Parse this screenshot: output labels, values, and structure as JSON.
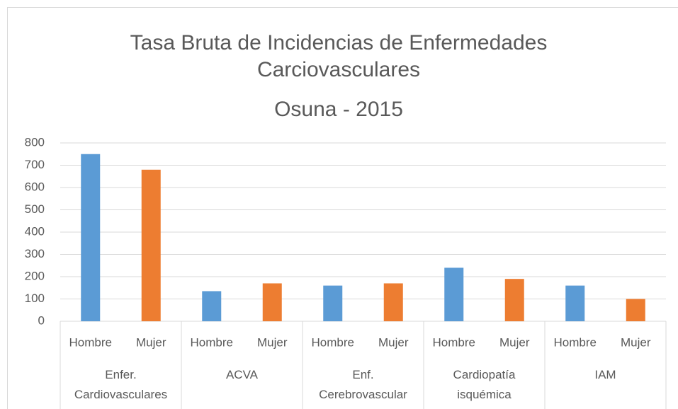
{
  "chart_data": {
    "type": "bar",
    "title": "Tasa Bruta de Incidencias de Enfermedades Carciovasculares",
    "subtitle": "Osuna - 2015",
    "categories": [
      "Enfer. Cardiovasculares",
      "ACVA",
      "Enf. Cerebrovascular",
      "Cardiopatía isquémica",
      "IAM"
    ],
    "series": [
      {
        "name": "Hombre",
        "color": "#5b9bd5",
        "values": [
          750,
          135,
          160,
          240,
          160
        ]
      },
      {
        "name": "Mujer",
        "color": "#ed7d31",
        "values": [
          680,
          170,
          170,
          190,
          100
        ]
      }
    ],
    "ylim": [
      0,
      800
    ],
    "yticks": [
      0,
      100,
      200,
      300,
      400,
      500,
      600,
      700,
      800
    ],
    "grid": true
  }
}
